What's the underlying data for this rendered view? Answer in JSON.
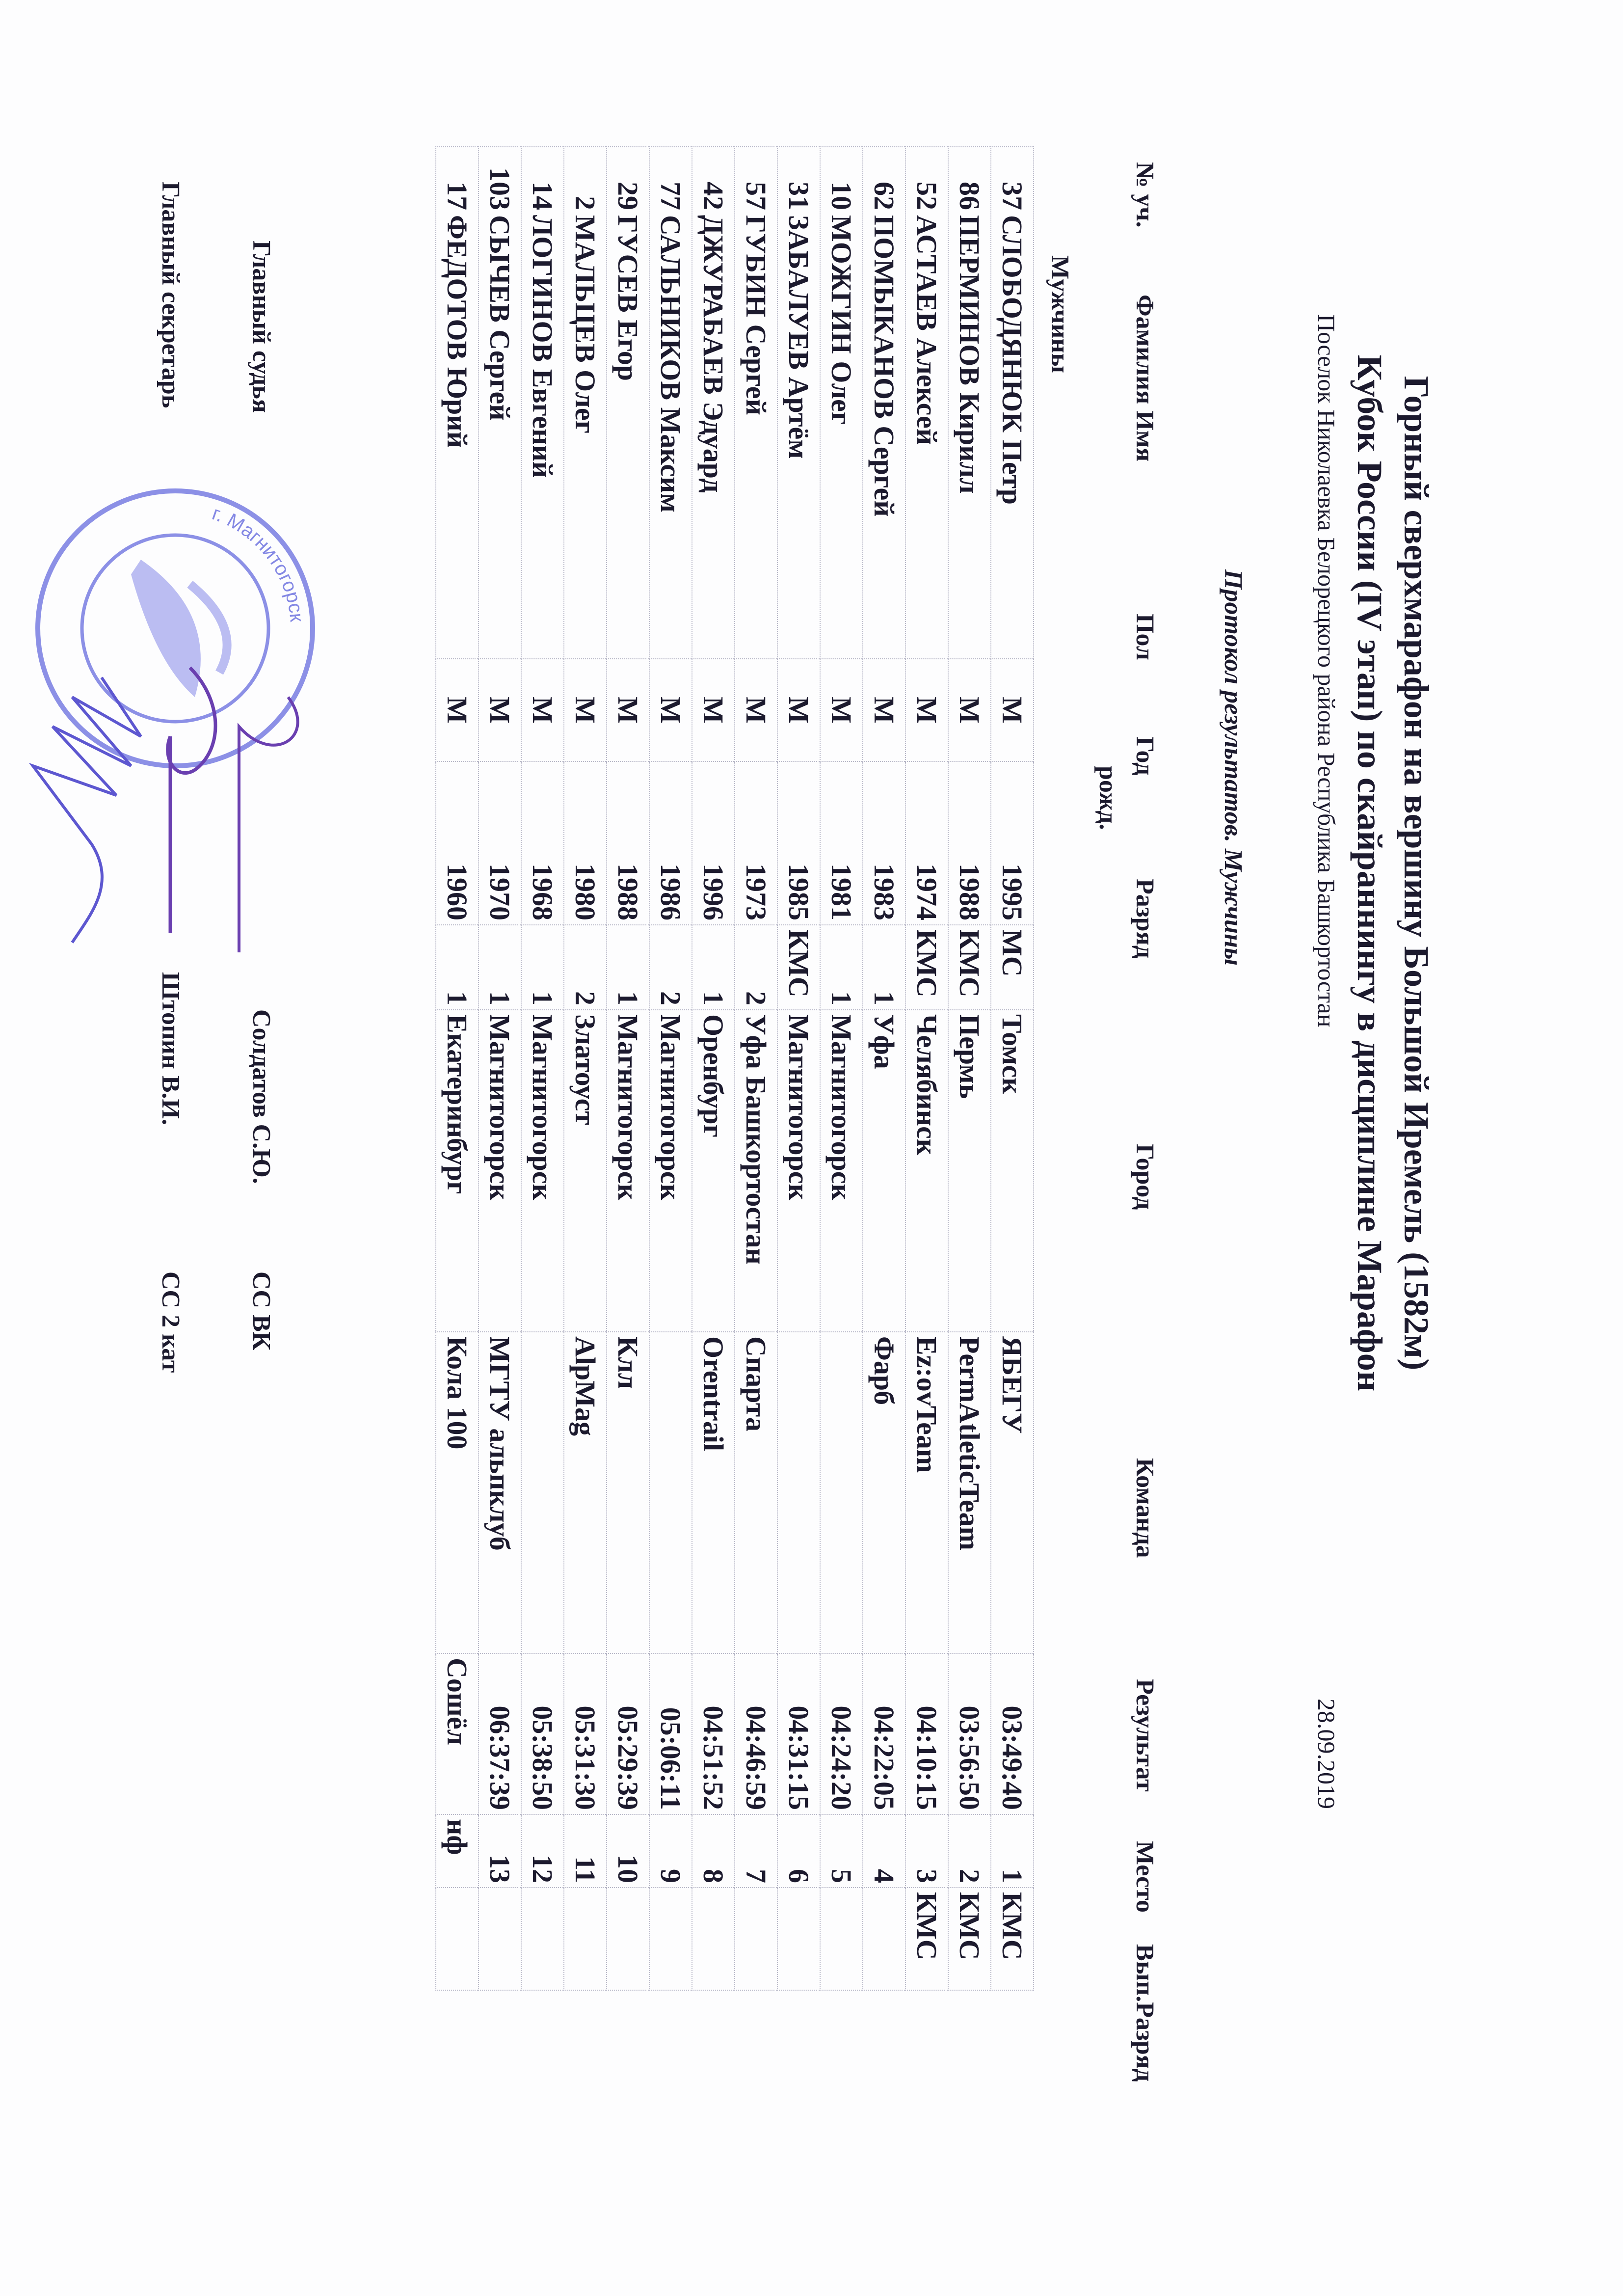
{
  "header": {
    "title_line1": "Горный сверхмарафон на вершину Большой Иремель (1582м)",
    "title_line2": "Кубок России (IV этап) по скайраннингу в дисциплине Марафон",
    "location": "Поселок Николаевка Белорецкого района Республика Башкортостан",
    "date": "28.09.2019",
    "protocol_title": "Протокол результатов. Мужчины"
  },
  "columns": {
    "num": "№ уч.",
    "name": "Фамилия Имя",
    "sex": "Пол",
    "year_line1": "Год",
    "year_line2": "рожд.",
    "rank": "Разряд",
    "city": "Город",
    "team": "Команда",
    "result": "Результат",
    "place": "Место",
    "achieved_rank": "Вып.Разряд"
  },
  "group_label": "Мужчины",
  "rows": [
    {
      "num": "37",
      "name": "СЛОБОДЯНЮК Петр",
      "sex": "М",
      "year": "1995",
      "rank": "МС",
      "city": "Томск",
      "team": "ЯБЕГУ",
      "result": "03:49:40",
      "place": "1",
      "achieved": "КМС"
    },
    {
      "num": "86",
      "name": "ПЕРМИНОВ Кирилл",
      "sex": "М",
      "year": "1988",
      "rank": "КМС",
      "city": "Пермь",
      "team": "PermAtleticTeam",
      "result": "03:56:50",
      "place": "2",
      "achieved": "КМС"
    },
    {
      "num": "52",
      "name": "АСТАЕВ Алексей",
      "sex": "М",
      "year": "1974",
      "rank": "КМС",
      "city": "Челябинск",
      "team": "Ez:ovTeam",
      "result": "04:10:15",
      "place": "3",
      "achieved": "КМС"
    },
    {
      "num": "62",
      "name": "ПОМЫКАНОВ Сергей",
      "sex": "М",
      "year": "1983",
      "rank": "1",
      "city": "Уфа",
      "team": "Фарб",
      "result": "04:22:05",
      "place": "4",
      "achieved": ""
    },
    {
      "num": "10",
      "name": "МОЖГИН Олег",
      "sex": "М",
      "year": "1981",
      "rank": "1",
      "city": "Магнитогорск",
      "team": "",
      "result": "04:24:20",
      "place": "5",
      "achieved": ""
    },
    {
      "num": "31",
      "name": "ЗАБАЛУЕВ Артём",
      "sex": "М",
      "year": "1985",
      "rank": "КМС",
      "city": "Магнитогорск",
      "team": "",
      "result": "04:31:15",
      "place": "6",
      "achieved": ""
    },
    {
      "num": "57",
      "name": "ГУБИН Сергей",
      "sex": "М",
      "year": "1973",
      "rank": "2",
      "city": "Уфа Башкортостан",
      "team": "Спарта",
      "result": "04:46:59",
      "place": "7",
      "achieved": ""
    },
    {
      "num": "42",
      "name": "ДЖУРАБАЕВ Эдуард",
      "sex": "М",
      "year": "1996",
      "rank": "1",
      "city": "Оренбург",
      "team": "Orentrail",
      "result": "04:51:52",
      "place": "8",
      "achieved": ""
    },
    {
      "num": "77",
      "name": "САЛЬНИКОВ Максим",
      "sex": "М",
      "year": "1986",
      "rank": "2",
      "city": "Магнитогорск",
      "team": "",
      "result": "05:06:11",
      "place": "9",
      "achieved": ""
    },
    {
      "num": "29",
      "name": "ГУСЕВ Егор",
      "sex": "М",
      "year": "1988",
      "rank": "1",
      "city": "Магнитогорск",
      "team": "Клл",
      "result": "05:29:39",
      "place": "10",
      "achieved": ""
    },
    {
      "num": "2",
      "name": "МАЛЬЦЕВ Олег",
      "sex": "М",
      "year": "1980",
      "rank": "2",
      "city": "Златоуст",
      "team": "AlpMag",
      "result": "05:31:30",
      "place": "11",
      "achieved": ""
    },
    {
      "num": "14",
      "name": "ЛОГИНОВ Евгений",
      "sex": "М",
      "year": "1968",
      "rank": "1",
      "city": "Магнитогорск",
      "team": "",
      "result": "05:38:50",
      "place": "12",
      "achieved": ""
    },
    {
      "num": "103",
      "name": "СЫЧЕВ Сергей",
      "sex": "М",
      "year": "1970",
      "rank": "1",
      "city": "Магнитогорск",
      "team": "МГТУ альпклуб",
      "result": "06:37:39",
      "place": "13",
      "achieved": ""
    },
    {
      "num": "17",
      "name": "ФЕДОТОВ Юрий",
      "sex": "М",
      "year": "1960",
      "rank": "1",
      "city": "Екатеринбург",
      "team": "Кола 100",
      "result": "Сошёл",
      "place": "нф",
      "achieved": ""
    }
  ],
  "footer": {
    "chief_judge_label": "Главный судья",
    "chief_judge_name": "Солдатов С.Ю.",
    "chief_judge_category": "СС ВК",
    "chief_secretary_label": "Главный секретарь",
    "chief_secretary_name": "Штопин В.И.",
    "chief_secretary_category": "СС 2 кат"
  },
  "stamp": {
    "text": "г. Магнитогорск",
    "color": "#6f74e0"
  },
  "signature_color": "#6a3fb0"
}
